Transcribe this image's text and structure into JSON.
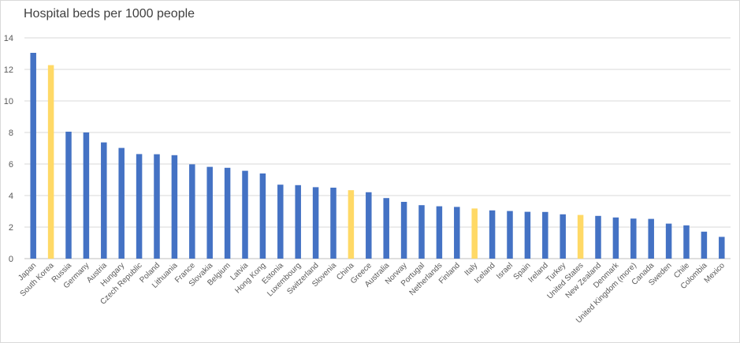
{
  "chart_data": {
    "type": "bar",
    "title": "Hospital beds per 1000 people",
    "xlabel": "",
    "ylabel": "",
    "ylim": [
      0,
      14
    ],
    "yticks": [
      "0",
      "2",
      "4",
      "6",
      "8",
      "10",
      "12",
      "14"
    ],
    "grid": true,
    "legend": "none",
    "categories": [
      "Japan",
      "South Korea",
      "Russia",
      "Germany",
      "Austria",
      "Hungary",
      "Czech Republic",
      "Poland",
      "Lithuania",
      "France",
      "Slovakia",
      "Belgium",
      "Latvia",
      "Hong Kong",
      "Estonia",
      "Luxembourg",
      "Switzerland",
      "Slovenia",
      "China",
      "Greece",
      "Australia",
      "Norway",
      "Portugal",
      "Netherlands",
      "Finland",
      "Italy",
      "Iceland",
      "Israel",
      "Spain",
      "Ireland",
      "Turkey",
      "United States",
      "New Zealand",
      "Denmark",
      "United Kingdom (more)",
      "Canada",
      "Sweden",
      "Chile",
      "Colombia",
      "Mexico"
    ],
    "values": [
      13.05,
      12.27,
      8.05,
      8.0,
      7.37,
      7.02,
      6.63,
      6.62,
      6.56,
      5.98,
      5.82,
      5.76,
      5.57,
      5.4,
      4.69,
      4.66,
      4.53,
      4.5,
      4.34,
      4.21,
      3.84,
      3.6,
      3.39,
      3.32,
      3.28,
      3.18,
      3.06,
      3.02,
      2.97,
      2.96,
      2.81,
      2.77,
      2.71,
      2.61,
      2.54,
      2.52,
      2.22,
      2.11,
      1.71,
      1.38
    ],
    "highlighted": [
      "South Korea",
      "China",
      "Italy",
      "United States"
    ],
    "colors": {
      "default": "#4472c4",
      "highlight": "#ffd966",
      "grid": "#d9d9d9",
      "axis": "#bfbfbf"
    }
  }
}
